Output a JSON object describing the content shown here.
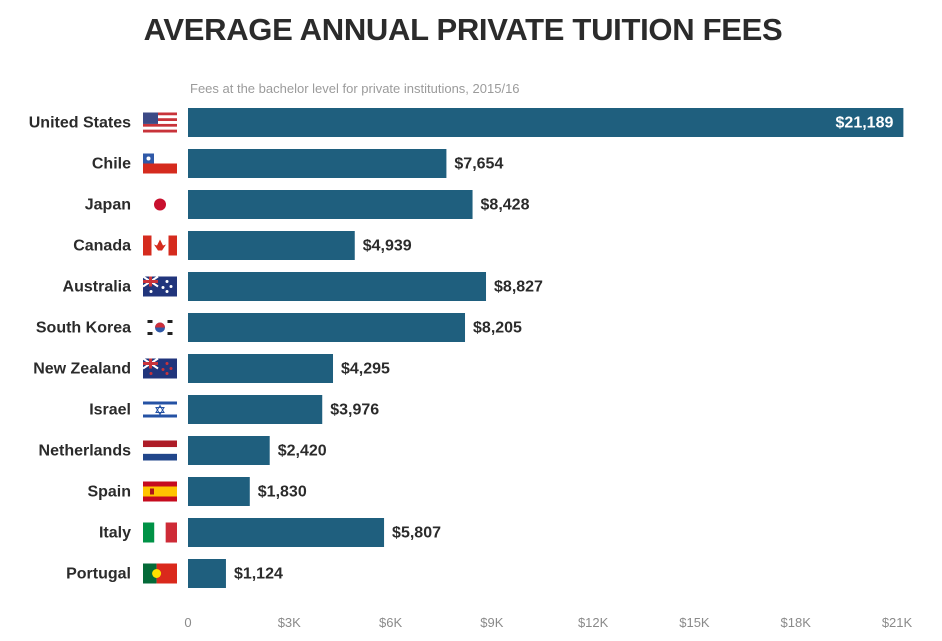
{
  "chart_data": {
    "type": "bar",
    "orientation": "horizontal",
    "title": "AVERAGE ANNUAL PRIVATE TUITION FEES",
    "subtitle": "Fees at the bachelor level for private institutions, 2015/16",
    "categories": [
      "United States",
      "Chile",
      "Japan",
      "Canada",
      "Australia",
      "South Korea",
      "New Zealand",
      "Israel",
      "Netherlands",
      "Spain",
      "Italy",
      "Portugal"
    ],
    "values": [
      21189,
      7654,
      8428,
      4939,
      8827,
      8205,
      4295,
      3976,
      2420,
      1830,
      5807,
      1124
    ],
    "value_labels": [
      "$21,189",
      "$7,654",
      "$8,428",
      "$4,939",
      "$8,827",
      "$8,205",
      "$4,295",
      "$3,976",
      "$2,420",
      "$1,830",
      "$5,807",
      "$1,124"
    ],
    "flag_icons": [
      "us-flag-icon",
      "chile-flag-icon",
      "japan-flag-icon",
      "canada-flag-icon",
      "australia-flag-icon",
      "south-korea-flag-icon",
      "new-zealand-flag-icon",
      "israel-flag-icon",
      "netherlands-flag-icon",
      "spain-flag-icon",
      "italy-flag-icon",
      "portugal-flag-icon"
    ],
    "xlim": [
      0,
      21000
    ],
    "xticks": [
      0,
      3000,
      6000,
      9000,
      12000,
      15000,
      18000,
      21000
    ],
    "xtick_labels": [
      "0",
      "$3K",
      "$6K",
      "$9K",
      "$12K",
      "$15K",
      "$18K",
      "$21K"
    ],
    "grid": false,
    "bar_color": "#1f5f7e"
  }
}
